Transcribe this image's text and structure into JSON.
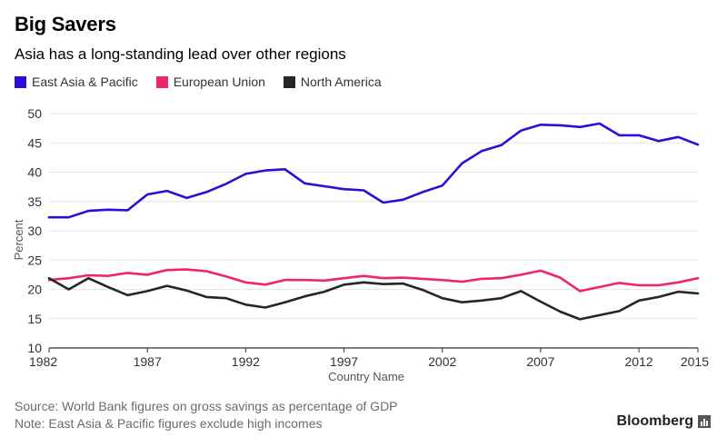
{
  "header": {
    "title": "Big Savers",
    "subtitle": "Asia has a long-standing lead over other regions"
  },
  "footer": {
    "source": "Source: World Bank figures on gross savings as percentage of GDP",
    "note": "Note: East Asia & Pacific figures exclude high incomes",
    "brand": "Bloomberg"
  },
  "colors": {
    "east_asia": "#2b0fd6",
    "eu": "#f0246e",
    "north_america": "#262626",
    "grid": "#e6e6e6",
    "axis": "#333333"
  },
  "chart_data": {
    "type": "line",
    "title": "Big Savers",
    "subtitle": "Asia has a long-standing lead over other regions",
    "xlabel": "Country Name",
    "ylabel": "Percent",
    "ylim": [
      10,
      50
    ],
    "xlim": [
      1982,
      2015
    ],
    "yticks": [
      "10",
      "15",
      "20",
      "25",
      "30",
      "35",
      "40",
      "45",
      "50"
    ],
    "xticks": [
      "1982",
      "1987",
      "1992",
      "1997",
      "2002",
      "2007",
      "2012",
      "2015"
    ],
    "grid": true,
    "legend_position": "top-left",
    "x": [
      1982,
      1983,
      1984,
      1985,
      1986,
      1987,
      1988,
      1989,
      1990,
      1991,
      1992,
      1993,
      1994,
      1995,
      1996,
      1997,
      1998,
      1999,
      2000,
      2001,
      2002,
      2003,
      2004,
      2005,
      2006,
      2007,
      2008,
      2009,
      2010,
      2011,
      2012,
      2013,
      2014,
      2015
    ],
    "series": [
      {
        "name": "East Asia & Pacific",
        "color": "#2b0fd6",
        "values": [
          32.3,
          32.3,
          33.4,
          33.6,
          33.5,
          36.2,
          36.8,
          35.6,
          36.6,
          38.0,
          39.7,
          40.3,
          40.5,
          38.1,
          37.6,
          37.1,
          36.9,
          34.8,
          35.3,
          36.6,
          37.7,
          41.5,
          43.6,
          44.6,
          47.1,
          48.1,
          48.0,
          47.7,
          48.3,
          46.3,
          46.3,
          45.3,
          46.0,
          44.7
        ]
      },
      {
        "name": "European Union",
        "color": "#f0246e",
        "values": [
          21.6,
          21.9,
          22.4,
          22.3,
          22.8,
          22.5,
          23.3,
          23.4,
          23.1,
          22.2,
          21.2,
          20.8,
          21.6,
          21.6,
          21.5,
          21.9,
          22.3,
          21.9,
          22.0,
          21.8,
          21.6,
          21.3,
          21.8,
          21.9,
          22.5,
          23.2,
          22.0,
          19.7,
          20.4,
          21.1,
          20.7,
          20.7,
          21.2,
          21.9
        ]
      },
      {
        "name": "North America",
        "color": "#262626",
        "values": [
          21.9,
          20.0,
          21.9,
          20.4,
          19.0,
          19.7,
          20.6,
          19.8,
          18.7,
          18.5,
          17.4,
          16.9,
          17.8,
          18.8,
          19.6,
          20.8,
          21.2,
          20.9,
          21.0,
          19.9,
          18.5,
          17.8,
          18.1,
          18.5,
          19.7,
          17.9,
          16.2,
          14.9,
          15.6,
          16.3,
          18.1,
          18.7,
          19.6,
          19.3
        ]
      }
    ]
  }
}
